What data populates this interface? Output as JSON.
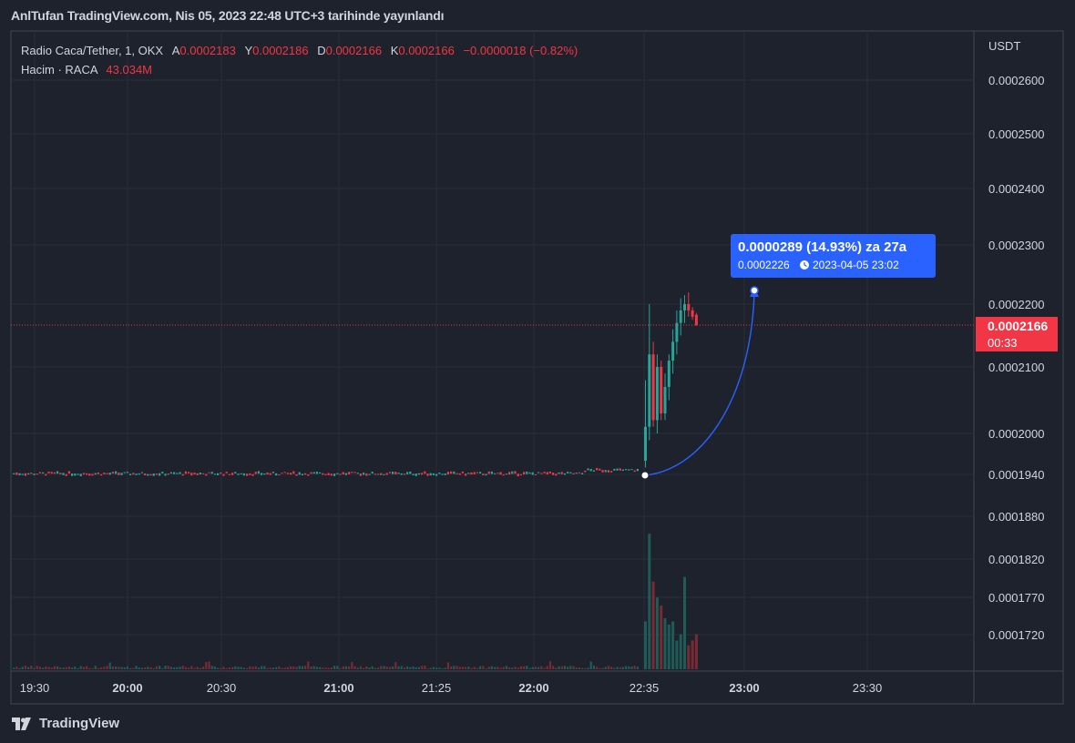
{
  "header": {
    "published_text": "AnlTufan TradingView.com, Nis 05, 2023 22:48 UTC+3 tarihinde yayınlandı"
  },
  "legend": {
    "symbol": "Radio Caca/Tether, 1, OKX",
    "open_label": "A",
    "open_value": "0.0002183",
    "high_label": "Y",
    "high_value": "0.0002186",
    "low_label": "D",
    "low_value": "0.0002166",
    "close_label": "K",
    "close_value": "0.0002166",
    "change": "−0.0000018 (−0.82%)",
    "volume_label": "Hacim · RACA",
    "volume_value": "43.034M"
  },
  "price_scale": {
    "unit": "USDT"
  },
  "current_price": {
    "value": "0.0002166",
    "countdown": "00:33",
    "color": "#f23645"
  },
  "projection": {
    "line1": "0.0000289 (14.93%) za 27a",
    "line2_price": "0.0002226",
    "line2_datetime": "2023-04-05  23:02",
    "icon": "clock-icon",
    "color": "#2962ff"
  },
  "branding": {
    "name": "TradingView",
    "icon": "tradingview-logo-icon"
  },
  "colors": {
    "up": "#26a69a",
    "down": "#f23645",
    "background": "#1e222d",
    "grid": "#2a2e39"
  },
  "chart_data": {
    "type": "candlestick",
    "x_ticks": [
      {
        "label": "19:30",
        "bold": false
      },
      {
        "label": "20:00",
        "bold": true
      },
      {
        "label": "20:30",
        "bold": false
      },
      {
        "label": "21:00",
        "bold": true
      },
      {
        "label": "21:25",
        "bold": false
      },
      {
        "label": "22:00",
        "bold": true
      },
      {
        "label": "22:35",
        "bold": false
      },
      {
        "label": "23:00",
        "bold": true
      },
      {
        "label": "23:30",
        "bold": false
      }
    ],
    "y_ticks": [
      "0.0002600",
      "0.0002500",
      "0.0002400",
      "0.0002300",
      "0.0002200",
      "0.0002100",
      "0.0002000",
      "0.0001940",
      "0.0001880",
      "0.0001820",
      "0.0001770",
      "0.0001720"
    ],
    "scale": "log",
    "grid": true,
    "breakout_start": "22:35",
    "breakout_candles": [
      {
        "o": 0.000196,
        "h": 0.000208,
        "l": 0.000195,
        "c": 0.000201,
        "v": 0.3
      },
      {
        "o": 0.000201,
        "h": 0.00022,
        "l": 0.000199,
        "c": 0.000212,
        "v": 0.85
      },
      {
        "o": 0.000212,
        "h": 0.000214,
        "l": 0.000201,
        "c": 0.000202,
        "v": 0.55
      },
      {
        "o": 0.000202,
        "h": 0.000212,
        "l": 0.0002,
        "c": 0.00021,
        "v": 0.45
      },
      {
        "o": 0.00021,
        "h": 0.000211,
        "l": 0.000202,
        "c": 0.000203,
        "v": 0.4
      },
      {
        "o": 0.000203,
        "h": 0.000209,
        "l": 0.000202,
        "c": 0.000207,
        "v": 0.32
      },
      {
        "o": 0.000207,
        "h": 0.000212,
        "l": 0.000205,
        "c": 0.000211,
        "v": 0.28
      },
      {
        "o": 0.000211,
        "h": 0.000216,
        "l": 0.000209,
        "c": 0.000214,
        "v": 0.3
      },
      {
        "o": 0.000214,
        "h": 0.000219,
        "l": 0.000212,
        "c": 0.000217,
        "v": 0.18
      },
      {
        "o": 0.000217,
        "h": 0.000221,
        "l": 0.000215,
        "c": 0.000219,
        "v": 0.22
      },
      {
        "o": 0.000219,
        "h": 0.0002215,
        "l": 0.000217,
        "c": 0.00022,
        "v": 0.58
      },
      {
        "o": 0.00022,
        "h": 0.000222,
        "l": 0.000218,
        "c": 0.000219,
        "v": 0.15
      },
      {
        "o": 0.000219,
        "h": 0.0002195,
        "l": 0.0002175,
        "c": 0.000218,
        "v": 0.18
      },
      {
        "o": 0.0002183,
        "h": 0.0002186,
        "l": 0.0002166,
        "c": 0.0002166,
        "v": 0.22
      }
    ]
  }
}
